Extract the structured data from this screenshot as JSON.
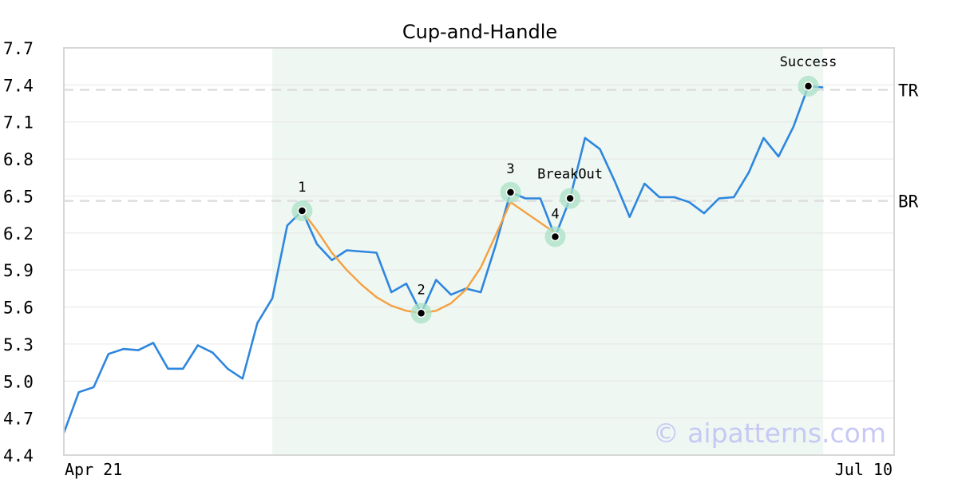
{
  "chart_data": {
    "type": "line",
    "title": "Cup-and-Handle",
    "xlabel": "",
    "ylabel": "",
    "x_ticks": [
      "Apr 21",
      "Jul 10"
    ],
    "ylim": [
      4.4,
      7.7
    ],
    "y_ticks": [
      "4.4",
      "4.7",
      "5.0",
      "5.3",
      "5.6",
      "5.9",
      "6.2",
      "6.5",
      "6.8",
      "7.1",
      "7.4",
      "7.7"
    ],
    "grid": true,
    "pattern_region": {
      "start_index": 14,
      "end_index": 51
    },
    "series": [
      {
        "values": [
          4.58,
          4.91,
          4.95,
          5.22,
          5.26,
          5.25,
          5.31,
          5.1,
          5.1,
          5.29,
          5.23,
          5.1,
          5.02,
          5.47,
          5.67,
          6.26,
          6.38,
          6.11,
          5.98,
          6.06,
          6.05,
          6.04,
          5.72,
          5.79,
          5.55,
          5.82,
          5.7,
          5.75,
          5.72,
          6.1,
          6.53,
          6.48,
          6.48,
          6.17,
          6.48,
          6.97,
          6.88,
          6.62,
          6.33,
          6.6,
          6.49,
          6.49,
          6.45,
          6.36,
          6.48,
          6.49,
          6.69,
          6.97,
          6.82,
          7.06,
          7.39,
          7.38
        ],
        "color": "#2e86de"
      },
      {
        "values": [
          [
            16,
            6.38
          ],
          [
            17,
            6.22
          ],
          [
            18,
            6.04
          ],
          [
            19,
            5.9
          ],
          [
            20,
            5.78
          ],
          [
            21,
            5.68
          ],
          [
            22,
            5.61
          ],
          [
            23,
            5.57
          ],
          [
            24,
            5.55
          ],
          [
            25,
            5.57
          ],
          [
            26,
            5.63
          ],
          [
            27,
            5.74
          ],
          [
            28,
            5.92
          ],
          [
            29,
            6.18
          ],
          [
            30,
            6.45
          ],
          [
            33,
            6.2
          ]
        ],
        "color": "#f4a040"
      }
    ],
    "levels": [
      {
        "label": "TR",
        "value": 7.36
      },
      {
        "label": "BR",
        "value": 6.46
      }
    ],
    "points": [
      {
        "label": "1",
        "index": 16,
        "value": 6.38
      },
      {
        "label": "2",
        "index": 24,
        "value": 5.55
      },
      {
        "label": "3",
        "index": 30,
        "value": 6.53
      },
      {
        "label": "4",
        "index": 33,
        "value": 6.17
      },
      {
        "label": "BreakOut",
        "index": 34,
        "value": 6.48
      },
      {
        "label": "Success",
        "index": 50,
        "value": 7.39
      }
    ],
    "watermark": "© aipatterns.com"
  }
}
